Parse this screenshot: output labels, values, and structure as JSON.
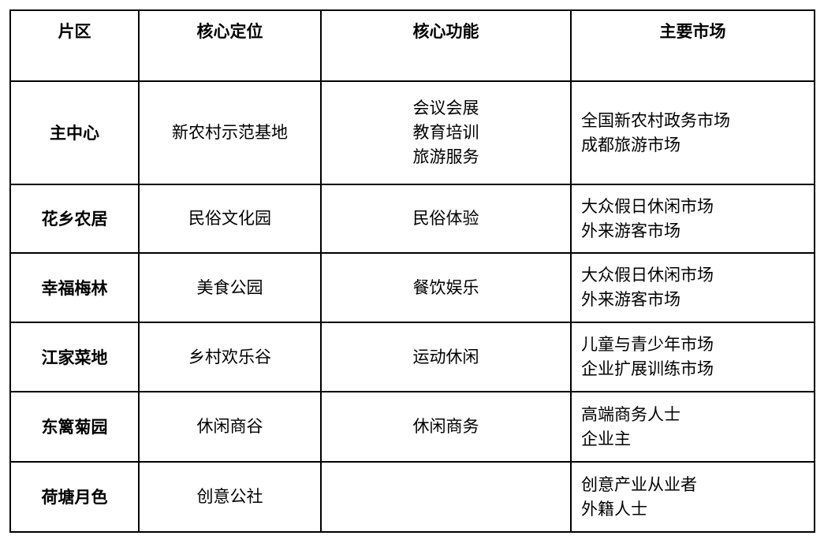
{
  "headers": [
    "片区",
    "核心定位",
    "核心功能",
    "主要市场"
  ],
  "rows": [
    {
      "zone": "主中心",
      "positioning": "新农村示范基地",
      "functions": [
        "会议会展",
        "教育培训",
        "旅游服务"
      ],
      "markets": [
        "全国新农村政务市场",
        "成都旅游市场"
      ]
    },
    {
      "zone": "花乡农居",
      "positioning": "民俗文化园",
      "functions": [
        "民俗体验"
      ],
      "markets": [
        "大众假日休闲市场",
        "外来游客市场"
      ]
    },
    {
      "zone": "幸福梅林",
      "positioning": "美食公园",
      "functions": [
        "餐饮娱乐"
      ],
      "markets": [
        "大众假日休闲市场",
        "外来游客市场"
      ]
    },
    {
      "zone": "江家菜地",
      "positioning": "乡村欢乐谷",
      "functions": [
        "运动休闲"
      ],
      "markets": [
        "儿童与青少年市场",
        "企业扩展训练市场"
      ]
    },
    {
      "zone": "东篱菊园",
      "positioning": "休闲商谷",
      "functions": [
        "休闲商务"
      ],
      "markets": [
        "高端商务人士",
        "企业主"
      ]
    },
    {
      "zone": "荷塘月色",
      "positioning": "创意公社",
      "functions": [],
      "markets": [
        "创意产业从业者",
        "外籍人士"
      ]
    }
  ]
}
